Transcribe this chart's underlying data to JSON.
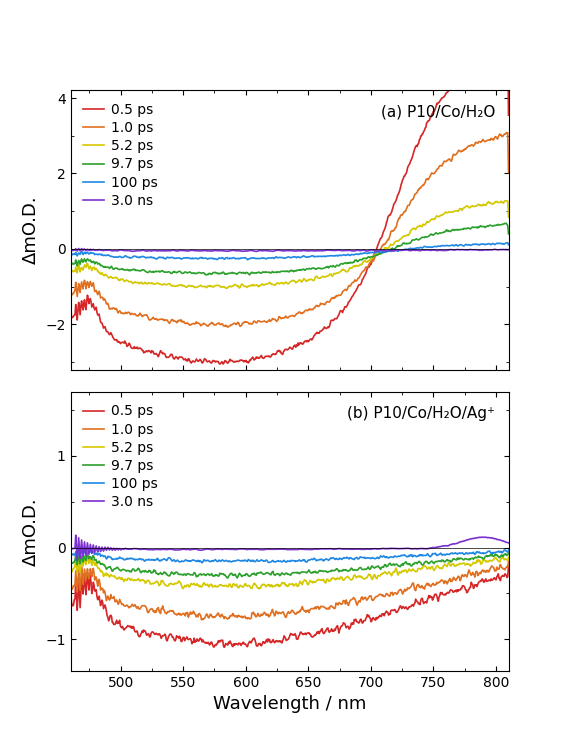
{
  "title_a": "(a) P10/Co/H₂O",
  "title_b": "(b) P10/Co/H₂O/Ag⁺",
  "xlabel": "Wavelength / nm",
  "ylabel": "ΔmO.D.",
  "xlim": [
    460,
    810
  ],
  "ylim_a": [
    -3.2,
    4.2
  ],
  "ylim_b": [
    -1.35,
    1.7
  ],
  "yticks_a": [
    -2,
    0,
    2,
    4
  ],
  "yticks_b": [
    -1,
    0,
    1
  ],
  "legend_labels": [
    "0.5 ps",
    "1.0 ps",
    "5.2 ps",
    "9.7 ps",
    "100 ps",
    "3.0 ns"
  ],
  "colors": [
    "#d62728",
    "#e07020",
    "#d4c800",
    "#2ca02c",
    "#1f88e5",
    "#7b30d0"
  ],
  "linewidth": 1.2
}
